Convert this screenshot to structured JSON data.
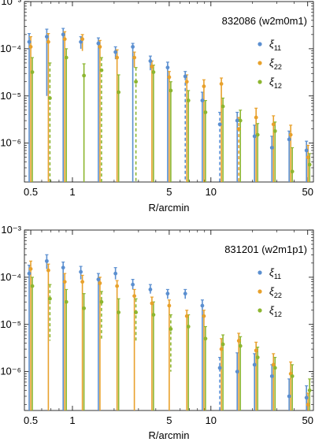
{
  "colors": {
    "xi11": "#5b8fd0",
    "xi22": "#e8a12c",
    "xi12": "#8db630",
    "axis": "#000000"
  },
  "chart_data": [
    {
      "type": "scatter",
      "panel_label": "832086 (w2m0m1)",
      "xlabel": "R/arcmin",
      "xscale": "log",
      "yscale": "log",
      "xlim": [
        0.45,
        55
      ],
      "ylim": [
        1.5e-07,
        0.001
      ],
      "xticks": [
        "0.5",
        "1",
        "5",
        "10",
        "50"
      ],
      "yticks": [
        "10⁻⁶",
        "10⁻⁵",
        "10⁻⁴",
        "10⁻³"
      ],
      "legend_position": "right",
      "series": [
        {
          "name": "ξ11",
          "label_main": "ξ",
          "label_sub": "11",
          "points": [
            [
              0.5,
              0.00014,
              0.00021,
              1.5e-07,
              false
            ],
            [
              0.67,
              0.00018,
              0.00026,
              1e-05,
              false
            ],
            [
              0.88,
              0.0002,
              0.00027,
              1.5e-07,
              false
            ],
            [
              1.18,
              0.00014,
              0.00018,
              0.0001,
              false
            ],
            [
              1.58,
              0.00013,
              0.00017,
              1.5e-07,
              false
            ],
            [
              2.1,
              8.5e-05,
              0.00011,
              6e-05,
              false
            ],
            [
              2.8,
              0.00011,
              0.00013,
              1.5e-07,
              false
            ],
            [
              3.75,
              5.5e-05,
              7e-05,
              3.5e-05,
              false
            ],
            [
              5.0,
              4e-05,
              5.2e-05,
              1.5e-07,
              false
            ],
            [
              6.7,
              2.6e-05,
              3.3e-05,
              1.5e-07,
              true
            ],
            [
              8.9,
              8e-06,
              1.2e-05,
              1.5e-07,
              false
            ],
            [
              11.9,
              2.5e-06,
              4.5e-06,
              1.5e-07,
              true
            ],
            [
              15.9,
              3e-06,
              4.5e-06,
              1.5e-07,
              false
            ],
            [
              21.2,
              1.4e-06,
              2.4e-06,
              1.5e-07,
              false
            ],
            [
              28.3,
              8e-07,
              1.4e-06,
              1.5e-07,
              false
            ],
            [
              37.7,
              1.2e-06,
              1.8e-06,
              1.5e-07,
              false
            ],
            [
              50.3,
              7e-07,
              1.1e-06,
              1.5e-07,
              false
            ]
          ]
        },
        {
          "name": "ξ22",
          "label_main": "ξ",
          "label_sub": "22",
          "points": [
            [
              0.5,
              0.00011,
              0.00018,
              1.5e-07,
              false
            ],
            [
              0.67,
              0.00014,
              0.00021,
              1.5e-07,
              false
            ],
            [
              0.88,
              0.00016,
              0.00023,
              1.5e-07,
              false
            ],
            [
              1.18,
              0.00016,
              0.0002,
              9e-05,
              false
            ],
            [
              1.58,
              0.00011,
              0.00015,
              1.5e-07,
              false
            ],
            [
              2.1,
              6.5e-05,
              9.5e-05,
              1.5e-07,
              false
            ],
            [
              2.8,
              6.5e-05,
              8.5e-05,
              4e-05,
              false
            ],
            [
              3.75,
              4.2e-05,
              5.5e-05,
              1.5e-07,
              false
            ],
            [
              5.0,
              2.5e-05,
              3.3e-05,
              1.5e-07,
              false
            ],
            [
              6.7,
              2e-05,
              2.8e-05,
              1.5e-07,
              false
            ],
            [
              8.9,
              1.6e-05,
              2.2e-05,
              1.5e-07,
              false
            ],
            [
              11.9,
              1.8e-05,
              2.4e-05,
              1.5e-07,
              false
            ],
            [
              15.9,
              2e-06,
              3.5e-06,
              1.5e-07,
              true
            ],
            [
              21.2,
              3.5e-06,
              5.5e-06,
              1.5e-07,
              false
            ],
            [
              28.3,
              2.5e-06,
              3.8e-06,
              1.5e-07,
              false
            ],
            [
              37.7,
              1.5e-06,
              2.4e-06,
              1.5e-07,
              false
            ],
            [
              50.3,
              5e-07,
              9e-07,
              1.5e-07,
              false
            ]
          ]
        },
        {
          "name": "ξ12",
          "label_main": "ξ",
          "label_sub": "12",
          "points": [
            [
              0.5,
              3.2e-05,
              6.5e-05,
              1.5e-07,
              false
            ],
            [
              0.67,
              9e-06,
              5e-05,
              1.5e-07,
              true
            ],
            [
              0.88,
              6.5e-05,
              0.0001,
              1.5e-07,
              false
            ],
            [
              1.18,
              2.7e-05,
              4.8e-05,
              1.5e-07,
              false
            ],
            [
              1.58,
              3.5e-05,
              6.5e-05,
              1.5e-07,
              true
            ],
            [
              2.1,
              1.2e-05,
              2.8e-05,
              1.5e-07,
              false
            ],
            [
              2.8,
              2e-05,
              4e-05,
              1.5e-07,
              true
            ],
            [
              3.75,
              3.2e-05,
              4.5e-05,
              1.5e-07,
              false
            ],
            [
              5.0,
              1.3e-05,
              2e-05,
              1.5e-07,
              false
            ],
            [
              6.7,
              8e-06,
              1.3e-05,
              1.5e-07,
              false
            ],
            [
              8.9,
              4.5e-06,
              8e-06,
              1.5e-07,
              false
            ],
            [
              11.9,
              6e-06,
              9e-06,
              1.5e-07,
              false
            ],
            [
              15.9,
              3e-06,
              5e-06,
              1.5e-07,
              false
            ],
            [
              21.2,
              1.5e-06,
              2.6e-06,
              1.5e-07,
              false
            ],
            [
              28.3,
              1.8e-06,
              2.8e-06,
              1.5e-07,
              false
            ],
            [
              37.7,
              2.5e-07,
              8e-07,
              1.5e-07,
              false
            ],
            [
              50.3,
              3.5e-07,
              6e-07,
              1.5e-07,
              false
            ]
          ]
        }
      ]
    },
    {
      "type": "scatter",
      "panel_label": "831201 (w2m1p1)",
      "xlabel": "R/arcmin",
      "xscale": "log",
      "yscale": "log",
      "xlim": [
        0.45,
        55
      ],
      "ylim": [
        1.5e-07,
        0.001
      ],
      "xticks": [
        "0.5",
        "1",
        "5",
        "10",
        "50"
      ],
      "yticks": [
        "10⁻⁶",
        "10⁻⁵",
        "10⁻⁴",
        "10⁻³"
      ],
      "legend_position": "right",
      "series": [
        {
          "name": "ξ11",
          "label_main": "ξ",
          "label_sub": "11",
          "points": [
            [
              0.5,
              0.00012,
              0.00018,
              1.5e-07,
              false
            ],
            [
              0.67,
              0.00022,
              0.0003,
              0.00015,
              false
            ],
            [
              0.88,
              0.00016,
              0.00021,
              1.5e-07,
              false
            ],
            [
              1.18,
              0.00013,
              0.00017,
              9e-05,
              false
            ],
            [
              1.58,
              9e-05,
              0.00012,
              1.5e-07,
              false
            ],
            [
              2.1,
              0.00012,
              0.00016,
              9e-05,
              false
            ],
            [
              2.8,
              7e-05,
              9e-05,
              5.5e-05,
              false
            ],
            [
              3.75,
              5.5e-05,
              7e-05,
              4.5e-05,
              false
            ],
            [
              5.0,
              4.5e-05,
              5.5e-05,
              3.5e-05,
              false
            ],
            [
              6.7,
              4.5e-05,
              5.5e-05,
              3.5e-05,
              false
            ],
            [
              8.9,
              2.5e-05,
              3.3e-05,
              1.5e-07,
              false
            ],
            [
              11.9,
              1.2e-06,
              2e-06,
              1.5e-07,
              true
            ],
            [
              15.9,
              1e-06,
              2.5e-06,
              1.5e-07,
              false
            ],
            [
              21.2,
              1.4e-06,
              2.4e-06,
              1.5e-07,
              false
            ],
            [
              28.3,
              8e-07,
              1.4e-06,
              1.5e-07,
              false
            ],
            [
              37.7,
              3e-07,
              7e-07,
              1.5e-07,
              false
            ],
            [
              50.3,
              2.8e-07,
              5e-07,
              1.5e-07,
              false
            ]
          ]
        },
        {
          "name": "ξ22",
          "label_main": "ξ",
          "label_sub": "22",
          "points": [
            [
              0.5,
              0.00015,
              0.00022,
              1.5e-07,
              false
            ],
            [
              0.67,
              0.00014,
              0.00019,
              1.5e-07,
              false
            ],
            [
              0.88,
              8e-05,
              0.00012,
              1.5e-07,
              false
            ],
            [
              1.18,
              8e-05,
              0.00011,
              1.5e-07,
              false
            ],
            [
              1.58,
              7.5e-05,
              0.0001,
              1.5e-07,
              false
            ],
            [
              2.1,
              6.5e-05,
              8.5e-05,
              1.5e-07,
              false
            ],
            [
              2.8,
              4e-05,
              5.5e-05,
              1.5e-07,
              false
            ],
            [
              3.75,
              2.8e-05,
              3.8e-05,
              1.5e-07,
              false
            ],
            [
              5.0,
              2.5e-05,
              3.3e-05,
              1.5e-07,
              false
            ],
            [
              6.7,
              1.5e-05,
              2e-05,
              1.5e-07,
              false
            ],
            [
              8.9,
              1.5e-05,
              2e-05,
              1.5e-07,
              false
            ],
            [
              11.9,
              3e-06,
              5e-06,
              1.5e-07,
              false
            ],
            [
              15.9,
              4.5e-06,
              6.5e-06,
              1.5e-07,
              false
            ],
            [
              21.2,
              2.8e-06,
              4.2e-06,
              1.5e-07,
              false
            ],
            [
              28.3,
              1.4e-06,
              2.4e-06,
              1.5e-07,
              false
            ],
            [
              37.7,
              9e-07,
              1.6e-06,
              1.5e-07,
              false
            ],
            [
              50.3,
              2e-07,
              3.5e-07,
              1.5e-07,
              false
            ]
          ]
        },
        {
          "name": "ξ12",
          "label_main": "ξ",
          "label_sub": "12",
          "points": [
            [
              0.5,
              6.5e-05,
              0.0001,
              1.5e-07,
              false
            ],
            [
              0.67,
              3.5e-05,
              7e-05,
              4.5e-06,
              true
            ],
            [
              0.88,
              3e-05,
              5.5e-05,
              1.5e-07,
              false
            ],
            [
              1.18,
              2.2e-05,
              4.5e-05,
              1.5e-07,
              false
            ],
            [
              1.58,
              3e-05,
              5e-05,
              5e-06,
              true
            ],
            [
              2.1,
              1.8e-05,
              3.5e-05,
              1.5e-07,
              false
            ],
            [
              2.8,
              1.8e-05,
              3.5e-05,
              4.5e-06,
              true
            ],
            [
              3.75,
              1.6e-05,
              3e-05,
              1.5e-07,
              false
            ],
            [
              5.0,
              8e-06,
              1.6e-05,
              1e-06,
              true
            ],
            [
              6.7,
              9e-06,
              1.6e-05,
              1.5e-07,
              false
            ],
            [
              8.9,
              5e-06,
              9e-06,
              1.5e-07,
              false
            ],
            [
              11.9,
              3.8e-06,
              6e-06,
              1.5e-07,
              false
            ],
            [
              15.9,
              3.5e-06,
              5.5e-06,
              1.5e-07,
              false
            ],
            [
              21.2,
              2e-06,
              3.3e-06,
              1.5e-07,
              false
            ],
            [
              28.3,
              1.2e-06,
              2e-06,
              1.5e-07,
              false
            ],
            [
              37.7,
              8e-07,
              1.4e-06,
              1.5e-07,
              false
            ],
            [
              50.3,
              4e-07,
              7e-07,
              1.5e-07,
              false
            ]
          ]
        }
      ]
    }
  ]
}
